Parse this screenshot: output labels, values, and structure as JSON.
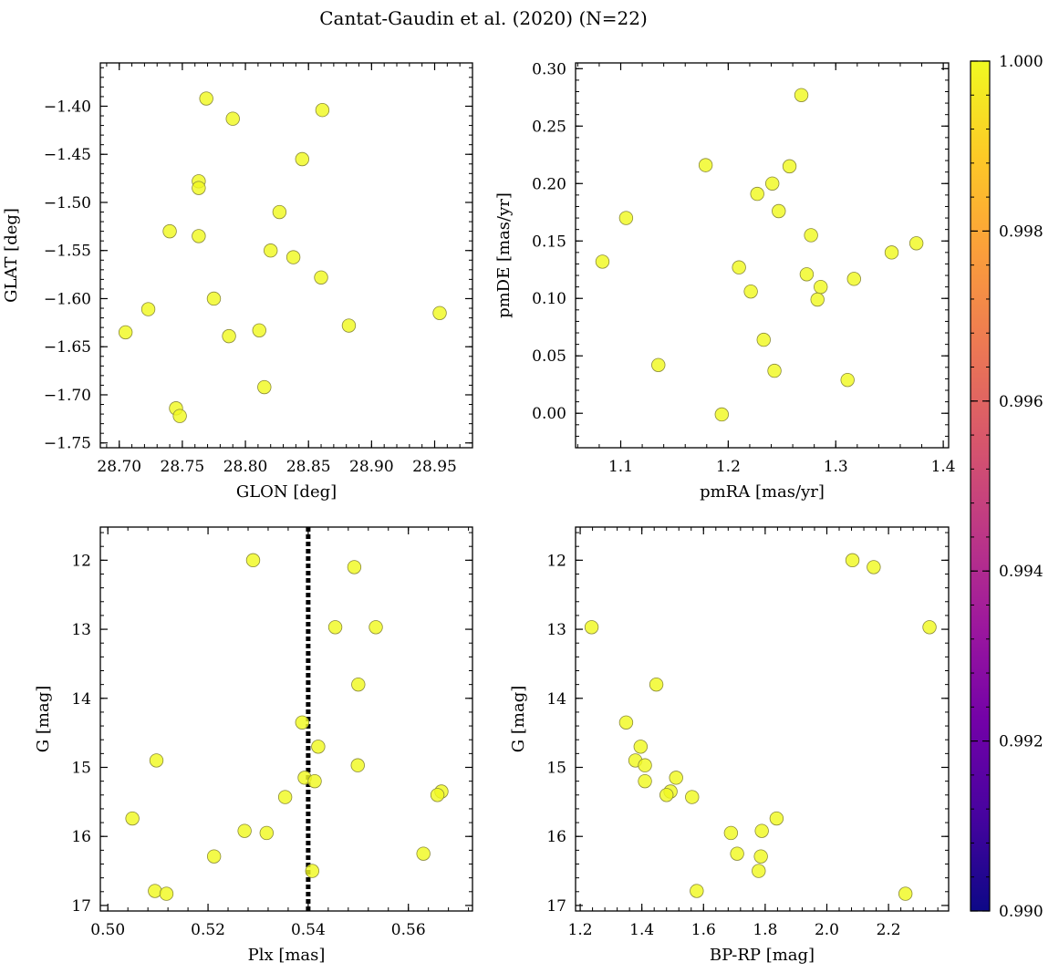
{
  "figure": {
    "title": "Cantat-Gaudin et al. (2020) (N=22)"
  },
  "colors": {
    "point_fill": "#f0f921",
    "point_edge": "#8a8a3a",
    "marker_line": "#000000",
    "cmap": [
      "#0d0887",
      "#46039f",
      "#7201a8",
      "#9c179e",
      "#bd3786",
      "#d8576b",
      "#ed7953",
      "#fb9f3a",
      "#fdca26",
      "#f0f921"
    ]
  },
  "colorbar": {
    "range": [
      0.99,
      1.0
    ],
    "ticks": [
      "0.990",
      "0.992",
      "0.994",
      "0.996",
      "0.998",
      "1.000"
    ],
    "tick_values": [
      0.99,
      0.992,
      0.994,
      0.996,
      0.998,
      1.0
    ]
  },
  "chart_data": [
    {
      "type": "scatter",
      "title": "",
      "xlabel": "GLON [deg]",
      "ylabel": "GLAT [deg]",
      "xlim": [
        28.685,
        28.98
      ],
      "ylim": [
        -1.755,
        -1.355
      ],
      "x_ticks": [
        28.7,
        28.75,
        28.8,
        28.85,
        28.9,
        28.95
      ],
      "x_tick_labels": [
        "28.70",
        "28.75",
        "28.80",
        "28.85",
        "28.90",
        "28.95"
      ],
      "y_ticks": [
        -1.4,
        -1.45,
        -1.5,
        -1.55,
        -1.6,
        -1.65,
        -1.7,
        -1.75
      ],
      "y_tick_labels": [
        "−1.40",
        "−1.45",
        "−1.50",
        "−1.55",
        "−1.60",
        "−1.65",
        "−1.70",
        "−1.75"
      ],
      "y_inverted": false,
      "x": [
        28.769,
        28.79,
        28.861,
        28.845,
        28.763,
        28.763,
        28.827,
        28.74,
        28.763,
        28.82,
        28.838,
        28.86,
        28.775,
        28.723,
        28.705,
        28.882,
        28.954,
        28.811,
        28.787,
        28.815,
        28.745,
        28.748
      ],
      "y": [
        -1.392,
        -1.413,
        -1.404,
        -1.455,
        -1.478,
        -1.485,
        -1.51,
        -1.53,
        -1.535,
        -1.55,
        -1.557,
        -1.578,
        -1.6,
        -1.611,
        -1.635,
        -1.628,
        -1.615,
        -1.633,
        -1.639,
        -1.692,
        -1.714,
        -1.722
      ]
    },
    {
      "type": "scatter",
      "title": "",
      "xlabel": "pmRA [mas/yr]",
      "ylabel": "pmDE [mas/yr]",
      "xlim": [
        1.058,
        1.405
      ],
      "ylim": [
        -0.03,
        0.305
      ],
      "x_ticks": [
        1.1,
        1.2,
        1.3,
        1.4
      ],
      "x_tick_labels": [
        "1.1",
        "1.2",
        "1.3",
        "1.4"
      ],
      "y_ticks": [
        0.0,
        0.05,
        0.1,
        0.15,
        0.2,
        0.25,
        0.3
      ],
      "y_tick_labels": [
        "0.00",
        "0.05",
        "0.10",
        "0.15",
        "0.20",
        "0.25",
        "0.30"
      ],
      "y_inverted": false,
      "x": [
        1.268,
        1.179,
        1.257,
        1.241,
        1.227,
        1.247,
        1.105,
        1.277,
        1.375,
        1.352,
        1.083,
        1.21,
        1.273,
        1.317,
        1.286,
        1.221,
        1.283,
        1.233,
        1.135,
        1.243,
        1.311,
        1.194
      ],
      "y": [
        0.277,
        0.216,
        0.215,
        0.2,
        0.191,
        0.176,
        0.17,
        0.155,
        0.148,
        0.14,
        0.132,
        0.127,
        0.121,
        0.117,
        0.11,
        0.106,
        0.099,
        0.064,
        0.042,
        0.037,
        0.029,
        -0.001
      ]
    },
    {
      "type": "scatter",
      "title": "",
      "xlabel": "Plx [mas]",
      "ylabel": "G [mag]",
      "xlim": [
        0.4985,
        0.5728
      ],
      "ylim": [
        17.08,
        11.52
      ],
      "x_ticks": [
        0.5,
        0.52,
        0.54,
        0.56
      ],
      "x_tick_labels": [
        "0.50",
        "0.52",
        "0.54",
        "0.56"
      ],
      "y_ticks": [
        12,
        13,
        14,
        15,
        16,
        17
      ],
      "y_tick_labels": [
        "12",
        "13",
        "14",
        "15",
        "16",
        "17"
      ],
      "y_inverted": true,
      "vline": {
        "x": 0.54,
        "style": "dotted"
      },
      "x": [
        0.529,
        0.5492,
        0.5454,
        0.5535,
        0.55,
        0.5388,
        0.542,
        0.5097,
        0.5499,
        0.5393,
        0.5413,
        0.5666,
        0.5658,
        0.5354,
        0.5049,
        0.5273,
        0.5317,
        0.563,
        0.5212,
        0.5408,
        0.5094,
        0.5117
      ],
      "y": [
        12.0,
        12.1,
        12.97,
        12.97,
        13.8,
        14.35,
        14.7,
        14.9,
        14.97,
        15.15,
        15.2,
        15.35,
        15.4,
        15.43,
        15.74,
        15.92,
        15.95,
        16.25,
        16.29,
        16.5,
        16.79,
        16.83
      ]
    },
    {
      "type": "scatter",
      "title": "",
      "xlabel": "BP-RP [mag]",
      "ylabel": "G [mag]",
      "xlim": [
        1.185,
        2.395
      ],
      "ylim": [
        17.08,
        11.52
      ],
      "x_ticks": [
        1.2,
        1.4,
        1.6,
        1.8,
        2.0,
        2.2
      ],
      "x_tick_labels": [
        "1.2",
        "1.4",
        "1.6",
        "1.8",
        "2.0",
        "2.2"
      ],
      "y_ticks": [
        12,
        13,
        14,
        15,
        16,
        17
      ],
      "y_tick_labels": [
        "12",
        "13",
        "14",
        "15",
        "16",
        "17"
      ],
      "y_inverted": true,
      "x": [
        2.083,
        2.152,
        1.237,
        2.333,
        1.447,
        1.349,
        1.396,
        1.379,
        1.41,
        1.511,
        1.41,
        1.493,
        1.48,
        1.563,
        1.837,
        1.789,
        1.689,
        1.709,
        1.786,
        1.779,
        1.578,
        2.255
      ],
      "y": [
        12.0,
        12.1,
        12.97,
        12.97,
        13.8,
        14.35,
        14.7,
        14.9,
        14.97,
        15.15,
        15.2,
        15.35,
        15.4,
        15.43,
        15.74,
        15.92,
        15.95,
        16.25,
        16.29,
        16.5,
        16.79,
        16.83
      ]
    }
  ]
}
